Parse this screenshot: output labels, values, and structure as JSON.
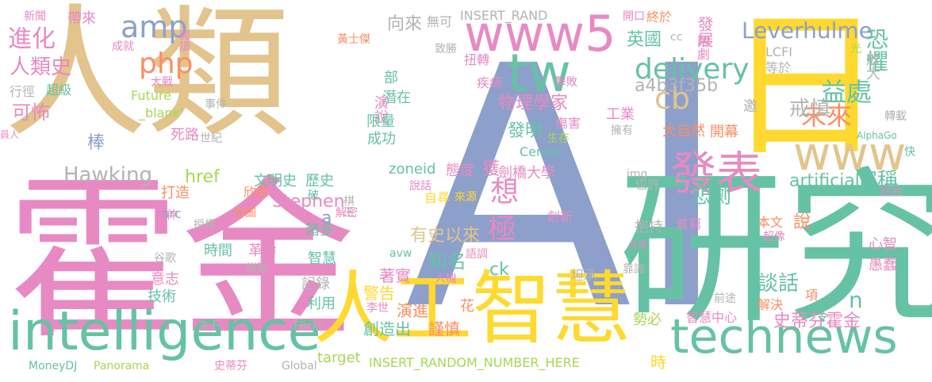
{
  "colors": {
    "tan": "#e2c48c",
    "pink": "#e78ac3",
    "green": "#66c2a5",
    "blue": "#8da0cb",
    "orange": "#fc8d62",
    "yellow": "#ffd92f",
    "lime": "#a6d854",
    "gray": "#b3b3b3"
  },
  "words": [
    {
      "text": "AI",
      "color": "blue"
    },
    {
      "text": "人類",
      "color": "tan"
    },
    {
      "text": "霍金",
      "color": "pink"
    },
    {
      "text": "研究",
      "color": "green"
    },
    {
      "text": "日",
      "color": "yellow"
    },
    {
      "text": "人工智慧",
      "color": "yellow"
    },
    {
      "text": "intelligence",
      "color": "green"
    },
    {
      "text": "technews",
      "color": "green"
    },
    {
      "text": "www5",
      "color": "pink"
    },
    {
      "text": "www",
      "color": "tan"
    },
    {
      "text": "tw",
      "color": "green"
    },
    {
      "text": "發表",
      "color": "pink"
    },
    {
      "text": "delivery",
      "color": "green"
    },
    {
      "text": "Leverhulme",
      "color": "blue"
    },
    {
      "text": "amp",
      "color": "blue"
    },
    {
      "text": "php",
      "color": "orange"
    },
    {
      "text": "cb",
      "color": "tan"
    },
    {
      "text": "進化",
      "color": "pink"
    },
    {
      "text": "人類史",
      "color": "pink"
    },
    {
      "text": "可怖",
      "color": "pink"
    },
    {
      "text": "棒",
      "color": "blue"
    },
    {
      "text": "Hawking",
      "color": "gray"
    },
    {
      "text": "物理學家",
      "color": "pink"
    },
    {
      "text": "發明",
      "color": "green"
    },
    {
      "text": "想",
      "color": "pink"
    },
    {
      "text": "a4b3f35b",
      "color": "gray"
    },
    {
      "text": "益處",
      "color": "green"
    },
    {
      "text": "未來",
      "color": "orange"
    },
    {
      "text": "恐懼",
      "color": "green"
    },
    {
      "text": "戒慎",
      "color": "gray"
    },
    {
      "text": "悲劇",
      "color": "green"
    },
    {
      "text": "artificial",
      "color": "green"
    },
    {
      "text": "宣稱",
      "color": "green"
    },
    {
      "text": "英國",
      "color": "green"
    },
    {
      "text": "發展",
      "color": "pink"
    },
    {
      "text": "Stephen",
      "color": "pink"
    },
    {
      "text": "href",
      "color": "lime"
    },
    {
      "text": "有史以來",
      "color": "tan"
    },
    {
      "text": "極",
      "color": "pink"
    },
    {
      "text": "知名",
      "color": "green"
    },
    {
      "text": "ck",
      "color": "green"
    },
    {
      "text": "談話",
      "color": "green"
    },
    {
      "text": "史蒂芬霍金",
      "color": "pink"
    },
    {
      "text": "n",
      "color": "green"
    },
    {
      "text": "a",
      "color": "blue"
    },
    {
      "text": "向來",
      "color": "gray"
    },
    {
      "text": "無可",
      "color": "gray"
    },
    {
      "text": "INSERT_RAND",
      "color": "gray"
    },
    {
      "text": "INSERT_RANDOM_NUMBER_HERE",
      "color": "lime"
    },
    {
      "text": "潛在",
      "color": "green"
    },
    {
      "text": "演說",
      "color": "pink"
    },
    {
      "text": "限量",
      "color": "green"
    },
    {
      "text": "成功",
      "color": "green"
    },
    {
      "text": "態度",
      "color": "pink"
    },
    {
      "text": "獲",
      "color": "pink"
    },
    {
      "text": "劍橋大學",
      "color": "pink"
    },
    {
      "text": "Centre",
      "color": "green"
    },
    {
      "text": "zoneid",
      "color": "green"
    },
    {
      "text": "自尋",
      "color": "yellow"
    },
    {
      "text": "來源",
      "color": "yellow"
    },
    {
      "text": "說話",
      "color": "pink"
    },
    {
      "text": "著實",
      "color": "pink"
    },
    {
      "text": "警告",
      "color": "yellow"
    },
    {
      "text": "演進",
      "color": "orange"
    },
    {
      "text": "創造出",
      "color": "green"
    },
    {
      "text": "謹慎",
      "color": "orange"
    },
    {
      "text": "花",
      "color": "orange"
    },
    {
      "text": "target",
      "color": "lime"
    },
    {
      "text": "時",
      "color": "yellow"
    },
    {
      "text": "抱持",
      "color": "gray"
    },
    {
      "text": "創新",
      "color": "pink"
    },
    {
      "text": "坦承",
      "color": "gray"
    },
    {
      "text": "記錄",
      "color": "gray"
    },
    {
      "text": "利用",
      "color": "green"
    },
    {
      "text": "智慧",
      "color": "green"
    },
    {
      "text": "諸多",
      "color": "green"
    },
    {
      "text": "時間",
      "color": "green"
    },
    {
      "text": "革命",
      "color": "pink"
    },
    {
      "text": "意志",
      "color": "pink"
    },
    {
      "text": "技術",
      "color": "green"
    },
    {
      "text": "文明史",
      "color": "green"
    },
    {
      "text": "歷史",
      "color": "green"
    },
    {
      "text": "欣慰",
      "color": "orange"
    },
    {
      "text": "打造",
      "color": "orange"
    },
    {
      "text": "src",
      "color": "blue"
    },
    {
      "text": "工業",
      "color": "pink"
    },
    {
      "text": "擁有",
      "color": "gray"
    },
    {
      "text": "大自然",
      "color": "orange"
    },
    {
      "text": "開幕",
      "color": "orange"
    },
    {
      "text": "邀",
      "color": "gray"
    },
    {
      "text": "也許",
      "color": "gray"
    },
    {
      "text": "貧窮",
      "color": "pink"
    },
    {
      "text": "本文",
      "color": "orange"
    },
    {
      "text": "心智",
      "color": "pink"
    },
    {
      "text": "愚蠢",
      "color": "pink"
    },
    {
      "text": "項",
      "color": "orange"
    },
    {
      "text": "解決",
      "color": "orange"
    },
    {
      "text": "勢必",
      "color": "lime"
    },
    {
      "text": "智慧中心",
      "color": "pink"
    },
    {
      "text": "前途",
      "color": "gray"
    },
    {
      "text": "說",
      "color": "orange"
    },
    {
      "text": "令",
      "color": "green"
    },
    {
      "text": "LCFI",
      "color": "gray"
    },
    {
      "text": "等於",
      "color": "gray"
    },
    {
      "text": "cc",
      "color": "gray"
    },
    {
      "text": "終於",
      "color": "orange"
    },
    {
      "text": "鬧劇",
      "color": "pink"
    },
    {
      "text": "開口",
      "color": "pink"
    },
    {
      "text": "放大",
      "color": "gray"
    },
    {
      "text": "光",
      "color": "lime"
    },
    {
      "text": "轉載",
      "color": "gray"
    },
    {
      "text": "AlphaGo",
      "color": "green"
    },
    {
      "text": "快",
      "color": "green"
    },
    {
      "text": "回台",
      "color": "pink"
    },
    {
      "text": "台灣",
      "color": "pink"
    },
    {
      "text": "超像",
      "color": "pink"
    },
    {
      "text": "靠識",
      "color": "gray"
    },
    {
      "text": "棋王",
      "color": "gray"
    },
    {
      "text": "img",
      "color": "gray"
    },
    {
      "text": "致勝",
      "color": "gray"
    },
    {
      "text": "扭轉",
      "color": "pink"
    },
    {
      "text": "疾病",
      "color": "pink"
    },
    {
      "text": "擊敗",
      "color": "pink"
    },
    {
      "text": "部",
      "color": "green"
    },
    {
      "text": "傷害",
      "color": "pink"
    },
    {
      "text": "生存",
      "color": "lime"
    },
    {
      "text": "新聞",
      "color": "pink"
    },
    {
      "text": "帶來",
      "color": "pink"
    },
    {
      "text": "閱讀",
      "color": "pink"
    },
    {
      "text": "黃士傑",
      "color": "orange"
    },
    {
      "text": "成就",
      "color": "pink"
    },
    {
      "text": "大戰",
      "color": "pink"
    },
    {
      "text": "行徑",
      "color": "gray"
    },
    {
      "text": "超級",
      "color": "green"
    },
    {
      "text": "Future",
      "color": "lime"
    },
    {
      "text": "_blank'",
      "color": "lime"
    },
    {
      "text": "事件",
      "color": "gray"
    },
    {
      "text": "死路",
      "color": "pink"
    },
    {
      "text": "世紀",
      "color": "gray"
    },
    {
      "text": "員人",
      "color": "pink"
    },
    {
      "text": "首圖",
      "color": "orange"
    },
    {
      "text": "延伸",
      "color": "pink"
    },
    {
      "text": "授權",
      "color": "gray"
    },
    {
      "text": "破",
      "color": "green"
    },
    {
      "text": "解密",
      "color": "pink"
    },
    {
      "text": "谷歌",
      "color": "gray"
    },
    {
      "text": "棋路",
      "color": "gray"
    },
    {
      "text": "avw",
      "color": "green"
    },
    {
      "text": "語調",
      "color": "pink"
    },
    {
      "text": "人機",
      "color": "pink"
    },
    {
      "text": "李世",
      "color": "pink"
    },
    {
      "text": "未卜",
      "color": "gray"
    },
    {
      "text": "Flickr",
      "color": "gray"
    },
    {
      "text": "Global",
      "color": "gray"
    },
    {
      "text": "MoneyDJ",
      "color": "green"
    },
    {
      "text": "Panorama",
      "color": "lime"
    },
    {
      "text": "史蒂芬",
      "color": "pink"
    }
  ]
}
